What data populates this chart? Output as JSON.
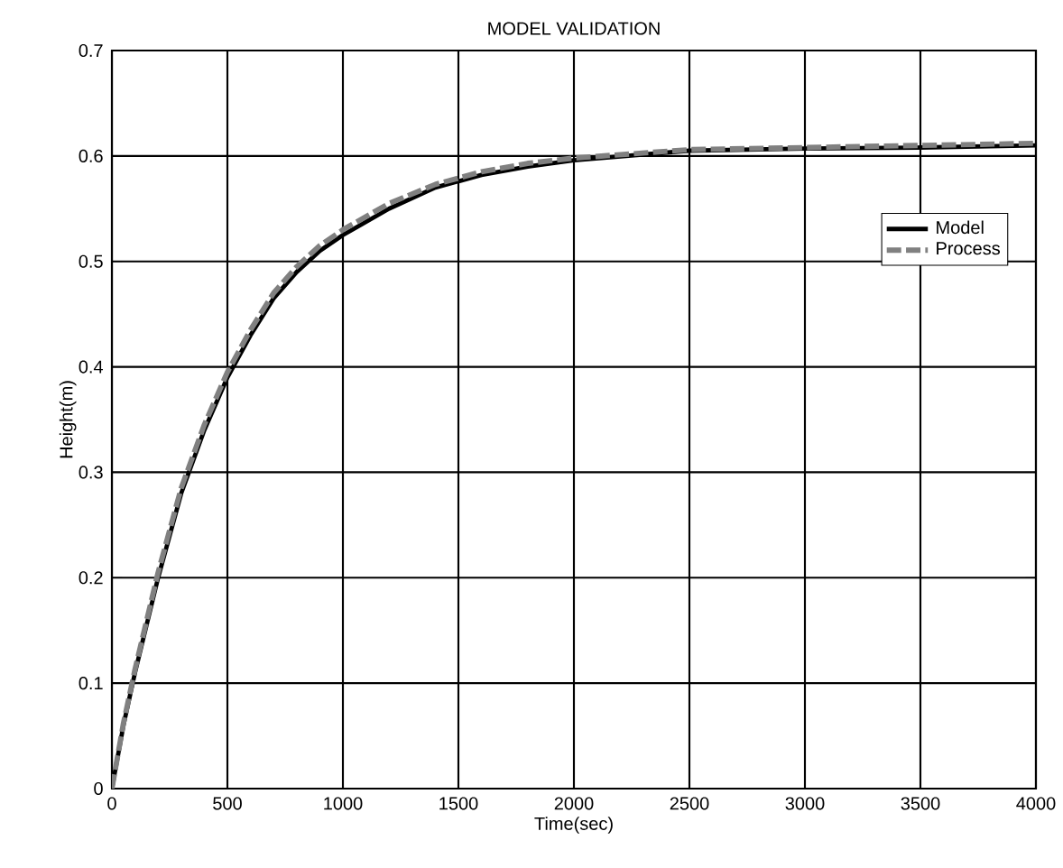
{
  "chart_data": {
    "type": "line",
    "title": "MODEL VALIDATION",
    "xlabel": "Time(sec)",
    "ylabel": "Height(m)",
    "x": [
      0,
      50,
      100,
      200,
      300,
      400,
      500,
      600,
      700,
      800,
      900,
      1000,
      1200,
      1400,
      1600,
      1800,
      2000,
      2500,
      3000,
      3500,
      4000
    ],
    "series": [
      {
        "name": "Model",
        "color": "#000000",
        "line_style": "solid",
        "values": [
          0,
          0.06,
          0.11,
          0.2,
          0.28,
          0.34,
          0.39,
          0.43,
          0.465,
          0.49,
          0.51,
          0.525,
          0.55,
          0.57,
          0.582,
          0.59,
          0.596,
          0.605,
          0.607,
          0.608,
          0.61
        ]
      },
      {
        "name": "Process",
        "color": "#808080",
        "line_style": "dashed",
        "values": [
          0,
          0.062,
          0.113,
          0.205,
          0.285,
          0.345,
          0.395,
          0.435,
          0.47,
          0.495,
          0.515,
          0.53,
          0.555,
          0.573,
          0.585,
          0.593,
          0.598,
          0.606,
          0.608,
          0.61,
          0.612
        ]
      }
    ],
    "xlim": [
      0,
      4000
    ],
    "ylim": [
      0,
      0.7
    ],
    "xticks": [
      0,
      500,
      1000,
      1500,
      2000,
      2500,
      3000,
      3500,
      4000
    ],
    "yticks": [
      0,
      0.1,
      0.2,
      0.3,
      0.4,
      0.5,
      0.6,
      0.7
    ],
    "grid": true,
    "legend": "right"
  }
}
